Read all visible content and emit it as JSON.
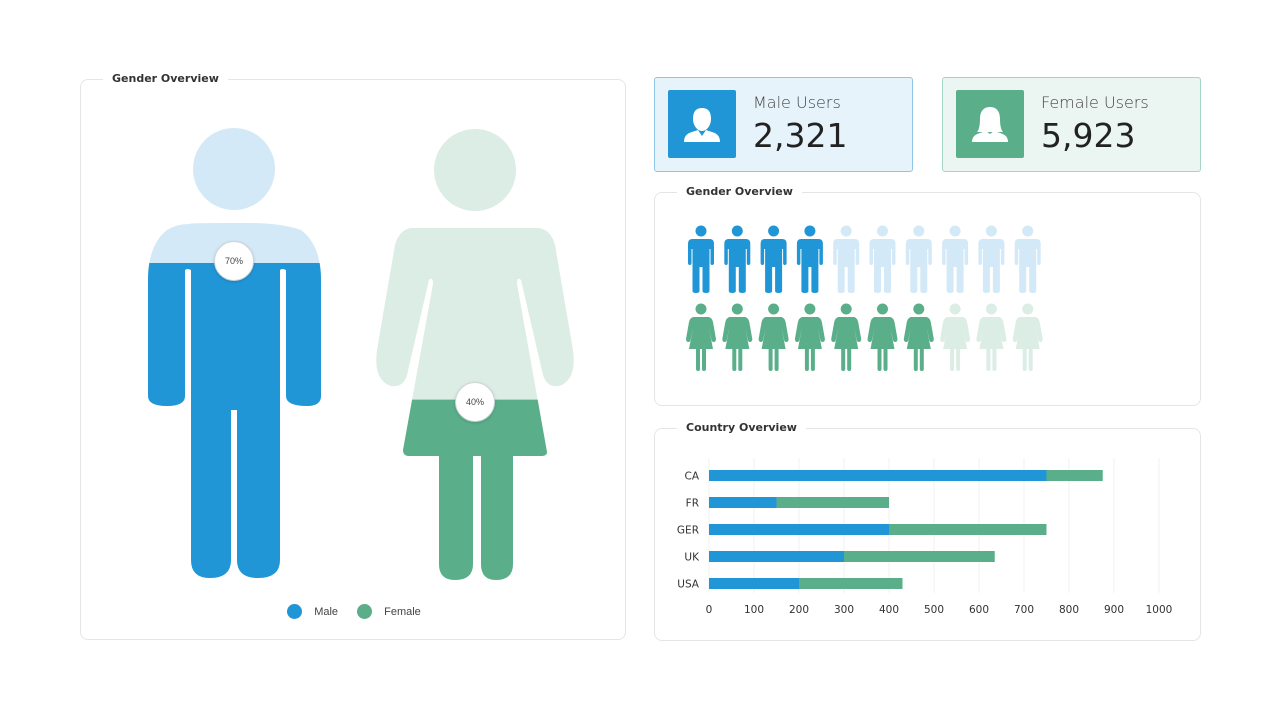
{
  "colors": {
    "male": "#2196d6",
    "male_light": "#d3e9f7",
    "female": "#5aaf8a",
    "female_light": "#dcede5"
  },
  "gender_panel": {
    "title": "Gender Overview",
    "male_pct_label": "70%",
    "female_pct_label": "40%",
    "male_fill": 0.7,
    "female_fill": 0.4,
    "legend": [
      {
        "label": "Male",
        "color": "#2196d6"
      },
      {
        "label": "Female",
        "color": "#5aaf8a"
      }
    ]
  },
  "cards": {
    "male": {
      "label": "Male Users",
      "value": "2,321",
      "icon": "male-user-icon"
    },
    "female": {
      "label": "Female Users",
      "value": "5,923",
      "icon": "female-user-icon"
    }
  },
  "icon_panel": {
    "title": "Gender Overview",
    "male_filled": 4,
    "male_total": 10,
    "female_filled": 7,
    "female_total": 10
  },
  "country_panel": {
    "title": "Country Overview"
  },
  "chart_data": {
    "type": "bar",
    "orientation": "horizontal",
    "stacked": true,
    "categories": [
      "CA",
      "FR",
      "GER",
      "UK",
      "USA"
    ],
    "series": [
      {
        "values": [
          750,
          150,
          400,
          300,
          200
        ],
        "color": "#2196d6"
      },
      {
        "values": [
          125,
          250,
          350,
          335,
          230
        ],
        "color": "#5aaf8a"
      }
    ],
    "xlim": [
      0,
      1000
    ],
    "xticks": [
      0,
      100,
      200,
      300,
      400,
      500,
      600,
      700,
      800,
      900,
      1000
    ],
    "grid": true
  }
}
